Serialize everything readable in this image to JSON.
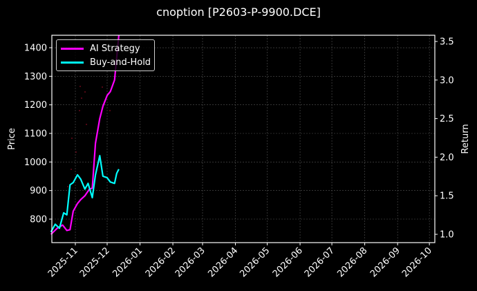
{
  "chart_data": {
    "type": "line",
    "title": "cnoption [P2603-P-9900.DCE]",
    "xlabel": "",
    "ylabel": "Price",
    "ylabel_right": "Return",
    "x_tick_labels": [
      "2025-11",
      "2025-12",
      "2026-01",
      "2026-02",
      "2026-03",
      "2026-04",
      "2026-05",
      "2026-06",
      "2026-07",
      "2026-08",
      "2026-09",
      "2026-10"
    ],
    "y_ticks_left": [
      800,
      900,
      1000,
      1100,
      1200,
      1300,
      1400
    ],
    "y_ticks_right": [
      "1.0",
      "1.5",
      "2.0",
      "2.5",
      "3.0",
      "3.5"
    ],
    "ylim_left": [
      725,
      1445
    ],
    "ylim_right": [
      0.89,
      3.58
    ],
    "xlim": [
      "2025-10-09",
      "2026-10-10"
    ],
    "grid": true,
    "legend_position": "upper left",
    "series": [
      {
        "name": "AI Strategy",
        "axis": "right",
        "color": "#ff00ff",
        "x": [
          "2025-10-09",
          "2025-10-15",
          "2025-10-20",
          "2025-10-24",
          "2025-10-27",
          "2025-10-30",
          "2025-11-03",
          "2025-11-06",
          "2025-11-10",
          "2025-11-14",
          "2025-11-17",
          "2025-11-20",
          "2025-11-24",
          "2025-11-27",
          "2025-12-01",
          "2025-12-04",
          "2025-12-08",
          "2025-12-12"
        ],
        "values": [
          1.0,
          1.08,
          1.12,
          1.05,
          1.06,
          1.3,
          1.4,
          1.45,
          1.5,
          1.58,
          1.6,
          2.18,
          2.5,
          2.66,
          2.8,
          2.85,
          3.0,
          3.6
        ]
      },
      {
        "name": "Buy-and-Hold",
        "axis": "left",
        "color": "#00ffff",
        "x": [
          "2025-10-09",
          "2025-10-13",
          "2025-10-17",
          "2025-10-21",
          "2025-10-24",
          "2025-10-27",
          "2025-10-30",
          "2025-11-03",
          "2025-11-06",
          "2025-11-10",
          "2025-11-13",
          "2025-11-17",
          "2025-11-20",
          "2025-11-24",
          "2025-11-27",
          "2025-12-01",
          "2025-12-04",
          "2025-12-08",
          "2025-12-10",
          "2025-12-12"
        ],
        "values": [
          755,
          782,
          768,
          822,
          815,
          920,
          928,
          955,
          940,
          905,
          925,
          875,
          955,
          1022,
          950,
          945,
          930,
          925,
          960,
          975
        ]
      }
    ]
  },
  "legend": {
    "items": [
      {
        "label": "AI Strategy",
        "color": "#ff00ff"
      },
      {
        "label": "Buy-and-Hold",
        "color": "#00ffff"
      }
    ]
  },
  "axes": {
    "left_label": "Price",
    "right_label": "Return"
  }
}
